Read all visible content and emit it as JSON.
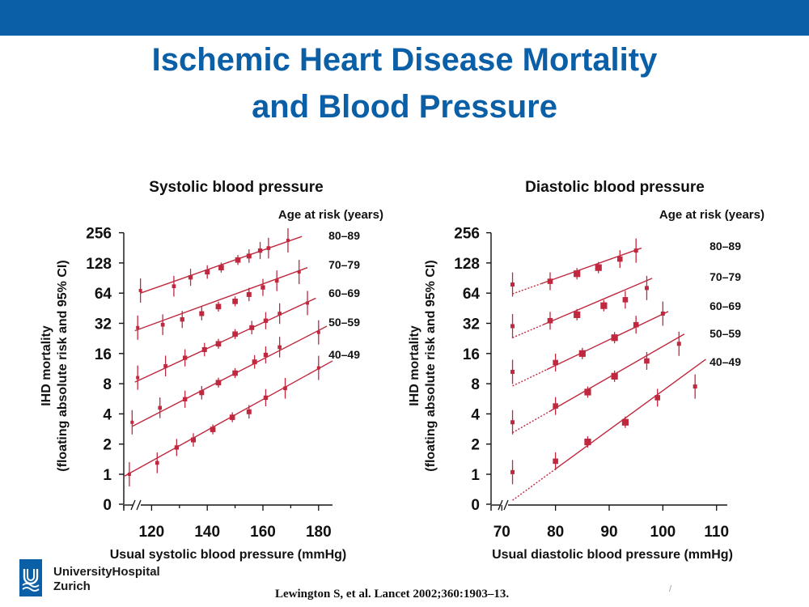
{
  "slide": {
    "title_line1": "Ischemic Heart Disease Mortality",
    "title_line2": "and Blood Pressure",
    "institution_line1": "UniversityHospital",
    "institution_line2": "Zurich",
    "citation": "Lewington S, et al. Lancet 2002;360:1903–13.",
    "slide_mark": "/"
  },
  "colors": {
    "brand": "#0a5fa6",
    "series": "#c0283f",
    "text": "#111111"
  },
  "chart_data": [
    {
      "type": "scatter",
      "title": "Systolic blood pressure",
      "xlabel": "Usual systolic blood pressure (mmHg)",
      "ylabel": "IHD mortality\n(floating absolute risk and 95% CI)",
      "legend_title": "Age at risk (years)",
      "y_scale": "log2",
      "y_ticks": [
        "256",
        "128",
        "64",
        "32",
        "16",
        "8",
        "4",
        "2",
        "1",
        "0"
      ],
      "x_ticks": [
        120,
        140,
        160,
        180
      ],
      "xlim": [
        110,
        185
      ],
      "x_axis_break": true,
      "series": [
        {
          "name": "80–89",
          "fit": [
            [
              116,
              64
            ],
            [
              174,
              235
            ]
          ],
          "points": [
            [
              116,
              68
            ],
            [
              128,
              75
            ],
            [
              134,
              92
            ],
            [
              140,
              104
            ],
            [
              145,
              115
            ],
            [
              151,
              137
            ],
            [
              155,
              150
            ],
            [
              159,
              170
            ],
            [
              162,
              180
            ],
            [
              169,
              215
            ]
          ]
        },
        {
          "name": "70–79",
          "fit": [
            [
              114,
              27
            ],
            [
              176,
              115
            ]
          ],
          "points": [
            [
              115,
              29
            ],
            [
              124,
              31
            ],
            [
              131,
              35
            ],
            [
              138,
              40
            ],
            [
              144,
              47
            ],
            [
              150,
              53
            ],
            [
              155,
              62
            ],
            [
              160,
              73
            ],
            [
              165,
              85
            ],
            [
              173,
              104
            ]
          ]
        },
        {
          "name": "60–69",
          "fit": [
            [
              114,
              8.3
            ],
            [
              179,
              57
            ]
          ],
          "points": [
            [
              115,
              9.2
            ],
            [
              125,
              12
            ],
            [
              132,
              14.5
            ],
            [
              139,
              17.5
            ],
            [
              144,
              20
            ],
            [
              150,
              25
            ],
            [
              156,
              29
            ],
            [
              161,
              34
            ],
            [
              166,
              40
            ],
            [
              176,
              51
            ]
          ]
        },
        {
          "name": "50–59",
          "fit": [
            [
              113,
              3.0
            ],
            [
              183,
              30
            ]
          ],
          "points": [
            [
              113,
              3.3
            ],
            [
              123,
              4.6
            ],
            [
              132,
              5.6
            ],
            [
              138,
              6.5
            ],
            [
              144,
              8.2
            ],
            [
              150,
              10.2
            ],
            [
              157,
              13.2
            ],
            [
              161,
              15.5
            ],
            [
              166,
              18.5
            ],
            [
              180,
              26
            ]
          ]
        },
        {
          "name": "40–49",
          "fit": [
            [
              110,
              0.95
            ],
            [
              185,
              13.5
            ]
          ],
          "points": [
            [
              112,
              1.0
            ],
            [
              122,
              1.3
            ],
            [
              129,
              1.85
            ],
            [
              135,
              2.2
            ],
            [
              142,
              2.8
            ],
            [
              149,
              3.7
            ],
            [
              155,
              4.2
            ],
            [
              161,
              5.8
            ],
            [
              168,
              7.2
            ],
            [
              180,
              11.5
            ]
          ]
        }
      ]
    },
    {
      "type": "scatter",
      "title": "Diastolic blood pressure",
      "xlabel": "Usual diastolic blood pressure (mmHg)",
      "ylabel": "IHD mortality\n(floating absolute risk and 95% CI)",
      "legend_title": "Age at risk (years)",
      "y_scale": "log2",
      "y_ticks": [
        "256",
        "128",
        "64",
        "32",
        "16",
        "8",
        "4",
        "2",
        "1",
        "0"
      ],
      "x_ticks": [
        70,
        80,
        90,
        100,
        110
      ],
      "xlim": [
        68,
        112
      ],
      "x_axis_break": true,
      "series": [
        {
          "name": "80–89",
          "fit": [
            [
              72,
              63
            ],
            [
              96,
              180
            ]
          ],
          "points": [
            [
              72,
              78
            ],
            [
              79,
              84
            ],
            [
              84,
              100
            ],
            [
              88,
              115
            ],
            [
              92,
              140
            ],
            [
              95,
              170
            ]
          ]
        },
        {
          "name": "70–79",
          "fit": [
            [
              72,
              23
            ],
            [
              98,
              90
            ]
          ],
          "points": [
            [
              72,
              30
            ],
            [
              79,
              34
            ],
            [
              84,
              39
            ],
            [
              89,
              48
            ],
            [
              93,
              55
            ],
            [
              97,
              72
            ]
          ]
        },
        {
          "name": "60–69",
          "fit": [
            [
              72,
              7.6
            ],
            [
              101,
              42
            ]
          ],
          "points": [
            [
              72,
              10.5
            ],
            [
              80,
              13
            ],
            [
              85,
              16
            ],
            [
              91,
              23
            ],
            [
              95,
              31
            ],
            [
              100,
              40
            ]
          ]
        },
        {
          "name": "50–59",
          "fit": [
            [
              72,
              2.6
            ],
            [
              104,
              25
            ]
          ],
          "points": [
            [
              72,
              3.3
            ],
            [
              80,
              4.8
            ],
            [
              86,
              6.6
            ],
            [
              91,
              9.5
            ],
            [
              97,
              13.5
            ],
            [
              103,
              20
            ]
          ]
        },
        {
          "name": "40–49",
          "fit": [
            [
              72,
              0.55
            ],
            [
              108,
              14
            ]
          ],
          "points": [
            [
              72,
              1.05
            ],
            [
              80,
              1.35
            ],
            [
              86,
              2.1
            ],
            [
              93,
              3.3
            ],
            [
              99,
              5.8
            ],
            [
              106,
              7.5
            ]
          ]
        }
      ]
    }
  ]
}
